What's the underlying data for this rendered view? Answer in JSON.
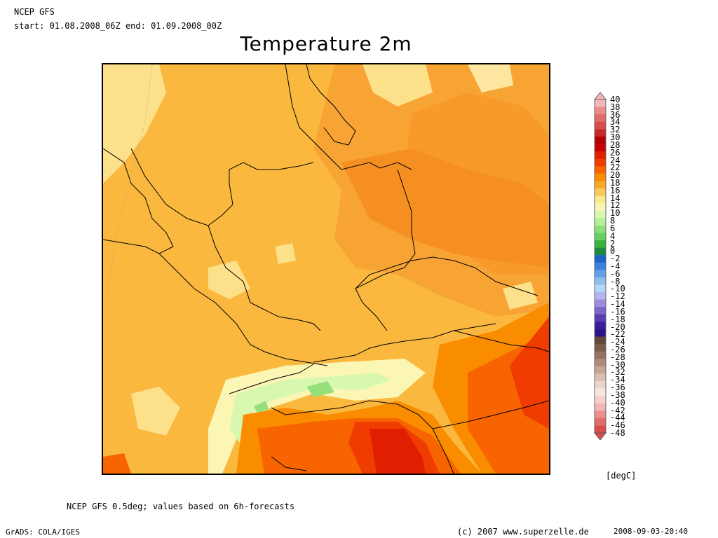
{
  "header": {
    "model": "NCEP GFS",
    "period": "start: 01.08.2008_06Z end: 01.09.2008_00Z",
    "title": "Temperature 2m"
  },
  "footer": {
    "note": "NCEP GFS 0.5deg; values based on 6h-forecasts",
    "software": "GrADS: COLA/IGES",
    "copyright": "(c) 2007 www.superzelle.de",
    "timestamp": "2008-09-03-20:40"
  },
  "colorbar": {
    "unit": "[degC]",
    "levels": [
      "40",
      "38",
      "36",
      "34",
      "32",
      "30",
      "28",
      "26",
      "24",
      "22",
      "20",
      "18",
      "16",
      "14",
      "12",
      "10",
      "8",
      "6",
      "4",
      "2",
      "0",
      "-2",
      "-4",
      "-6",
      "-8",
      "-10",
      "-12",
      "-14",
      "-16",
      "-18",
      "-20",
      "-22",
      "-24",
      "-26",
      "-28",
      "-30",
      "-32",
      "-34",
      "-36",
      "-38",
      "-40",
      "-42",
      "-44",
      "-46",
      "-48"
    ],
    "colors": [
      "#f4b6b6",
      "#e88c8c",
      "#e06c6c",
      "#d84c4c",
      "#c82828",
      "#b40000",
      "#c80000",
      "#e01e00",
      "#f03c00",
      "#f86400",
      "#fa8c00",
      "#f8a828",
      "#fbc85a",
      "#fce88c",
      "#fcf6b4",
      "#d8f8b0",
      "#b4f096",
      "#8ce07c",
      "#64d064",
      "#3cb43c",
      "#1e8c3c",
      "#1e64c8",
      "#3c82dc",
      "#64a0e8",
      "#8cbef0",
      "#b4d6f8",
      "#b4b4f0",
      "#9c8ce0",
      "#7c64c8",
      "#5a3cb4",
      "#3c1e9c",
      "#2a1488",
      "#64463c",
      "#7c5a4c",
      "#967060",
      "#b08a7a",
      "#c8a494",
      "#dcbeb0",
      "#ecd6cc",
      "#f6e6e0",
      "#f6d0d0",
      "#f2b4b4",
      "#ea9090",
      "#e26c6c",
      "#dc4c4c"
    ]
  },
  "map": {
    "fields": [
      {
        "value": 16,
        "color": "#fbc85a"
      },
      {
        "value": 18,
        "color": "#f8a828"
      },
      {
        "value": 14,
        "color": "#fce88c"
      },
      {
        "value": 12,
        "color": "#fcf6b4"
      },
      {
        "value": 10,
        "color": "#d8f8b0"
      },
      {
        "value": 8,
        "color": "#b4f096"
      },
      {
        "value": 20,
        "color": "#fa8c00"
      },
      {
        "value": 22,
        "color": "#f86400"
      },
      {
        "value": 24,
        "color": "#f03c00"
      },
      {
        "value": 26,
        "color": "#e01e00"
      }
    ]
  }
}
